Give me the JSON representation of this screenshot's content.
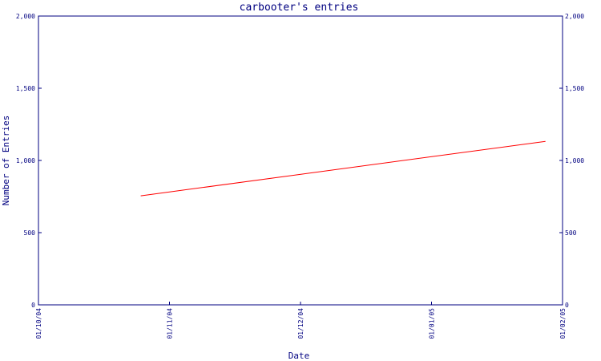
{
  "chart_data": {
    "type": "line",
    "title": "carbooter's entries",
    "xlabel": "Date",
    "ylabel": "Number of Entries",
    "x_ticks": [
      "01/10/04",
      "01/11/04",
      "01/12/04",
      "01/01/05",
      "01/02/05"
    ],
    "x_range": [
      "2004-10-01",
      "2005-02-01"
    ],
    "y_ticks": [
      "0",
      "500",
      "1,000",
      "1,500",
      "2,000"
    ],
    "ylim": [
      0,
      2000
    ],
    "grid": false,
    "line_color": "#ff0000",
    "axis_color": "#000080",
    "series": [
      {
        "x": [
          "2004-10-25",
          "2005-01-28"
        ],
        "values": [
          755,
          1132
        ]
      }
    ]
  }
}
